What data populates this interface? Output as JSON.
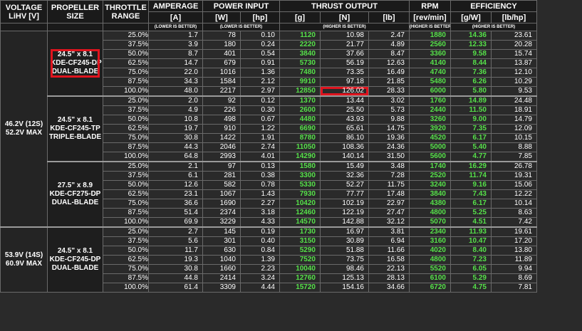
{
  "headers": {
    "voltage": [
      "VOLTAGE",
      "LiHV [V]"
    ],
    "propeller": [
      "PROPELLER",
      "SIZE"
    ],
    "throttle": [
      "THROTTLE",
      "RANGE"
    ],
    "amperage": {
      "title": "AMPERAGE",
      "unit": "[A]",
      "note": "(LOWER IS BETTER)"
    },
    "power": {
      "title": "POWER INPUT",
      "unit1": "[W]",
      "unit2": "[hp]",
      "note": "(LOWER IS BETTER)"
    },
    "thrust": {
      "title": "THRUST OUTPUT",
      "unit1": "[g]",
      "unit2": "[N]",
      "unit3": "[lb]",
      "note": "(HIGHER IS BETTER)"
    },
    "rpm": {
      "title": "RPM",
      "unit": "[rev/min]",
      "note": "(HIGHER IS BETTER)"
    },
    "efficiency": {
      "title": "EFFICIENCY",
      "unit1": "[g/W]",
      "unit2": "[lb/hp]",
      "note": "(HIGHER IS BETTER)"
    }
  },
  "voltages": [
    {
      "lines": [
        "46.2V (12S)",
        "52.2V MAX"
      ]
    },
    {
      "lines": [
        "53.9V (14S)",
        "60.9V MAX"
      ]
    }
  ],
  "groups": [
    {
      "prop_lines": [
        "24.5\" x 8.1",
        "KDE-CF245-DP",
        "DUAL-BLADE"
      ],
      "rows": [
        [
          "25.0%",
          "1.7",
          "78",
          "0.10",
          "1120",
          "10.98",
          "2.47",
          "1880",
          "14.36",
          "23.61"
        ],
        [
          "37.5%",
          "3.9",
          "180",
          "0.24",
          "2220",
          "21.77",
          "4.89",
          "2560",
          "12.33",
          "20.28"
        ],
        [
          "50.0%",
          "8.7",
          "401",
          "0.54",
          "3840",
          "37.66",
          "8.47",
          "3360",
          "9.58",
          "15.74"
        ],
        [
          "62.5%",
          "14.7",
          "679",
          "0.91",
          "5730",
          "56.19",
          "12.63",
          "4140",
          "8.44",
          "13.87"
        ],
        [
          "75.0%",
          "22.0",
          "1016",
          "1.36",
          "7480",
          "73.35",
          "16.49",
          "4740",
          "7.36",
          "12.10"
        ],
        [
          "87.5%",
          "34.3",
          "1584",
          "2.12",
          "9910",
          "97.18",
          "21.85",
          "5480",
          "6.26",
          "10.29"
        ],
        [
          "100.0%",
          "48.0",
          "2217",
          "2.97",
          "12850",
          "126.02",
          "28.33",
          "6000",
          "5.80",
          "9.53"
        ]
      ]
    },
    {
      "prop_lines": [
        "24.5\" x 8.1",
        "KDE-CF245-TP",
        "TRIPLE-BLADE"
      ],
      "rows": [
        [
          "25.0%",
          "2.0",
          "92",
          "0.12",
          "1370",
          "13.44",
          "3.02",
          "1760",
          "14.89",
          "24.48"
        ],
        [
          "37.5%",
          "4.9",
          "226",
          "0.30",
          "2600",
          "25.50",
          "5.73",
          "2440",
          "11.50",
          "18.91"
        ],
        [
          "50.0%",
          "10.8",
          "498",
          "0.67",
          "4480",
          "43.93",
          "9.88",
          "3260",
          "9.00",
          "14.79"
        ],
        [
          "62.5%",
          "19.7",
          "910",
          "1.22",
          "6690",
          "65.61",
          "14.75",
          "3920",
          "7.35",
          "12.09"
        ],
        [
          "75.0%",
          "30.8",
          "1422",
          "1.91",
          "8780",
          "86.10",
          "19.36",
          "4520",
          "6.17",
          "10.15"
        ],
        [
          "87.5%",
          "44.3",
          "2046",
          "2.74",
          "11050",
          "108.36",
          "24.36",
          "5000",
          "5.40",
          "8.88"
        ],
        [
          "100.0%",
          "64.8",
          "2993",
          "4.01",
          "14290",
          "140.14",
          "31.50",
          "5600",
          "4.77",
          "7.85"
        ]
      ]
    },
    {
      "prop_lines": [
        "27.5\" x 8.9",
        "KDE-CF275-DP",
        "DUAL-BLADE"
      ],
      "rows": [
        [
          "25.0%",
          "2.1",
          "97",
          "0.13",
          "1580",
          "15.49",
          "3.48",
          "1740",
          "16.29",
          "26.78"
        ],
        [
          "37.5%",
          "6.1",
          "281",
          "0.38",
          "3300",
          "32.36",
          "7.28",
          "2520",
          "11.74",
          "19.31"
        ],
        [
          "50.0%",
          "12.6",
          "582",
          "0.78",
          "5330",
          "52.27",
          "11.75",
          "3240",
          "9.16",
          "15.06"
        ],
        [
          "62.5%",
          "23.1",
          "1067",
          "1.43",
          "7930",
          "77.77",
          "17.48",
          "3840",
          "7.43",
          "12.22"
        ],
        [
          "75.0%",
          "36.6",
          "1690",
          "2.27",
          "10420",
          "102.19",
          "22.97",
          "4380",
          "6.17",
          "10.14"
        ],
        [
          "87.5%",
          "51.4",
          "2374",
          "3.18",
          "12460",
          "122.19",
          "27.47",
          "4800",
          "5.25",
          "8.63"
        ],
        [
          "100.0%",
          "69.9",
          "3229",
          "4.33",
          "14570",
          "142.88",
          "32.12",
          "5070",
          "4.51",
          "7.42"
        ]
      ]
    },
    {
      "prop_lines": [
        "24.5\" x 8.1",
        "KDE-CF245-DP",
        "DUAL-BLADE"
      ],
      "rows": [
        [
          "25.0%",
          "2.7",
          "145",
          "0.19",
          "1730",
          "16.97",
          "3.81",
          "2340",
          "11.93",
          "19.61"
        ],
        [
          "37.5%",
          "5.6",
          "301",
          "0.40",
          "3150",
          "30.89",
          "6.94",
          "3160",
          "10.47",
          "17.20"
        ],
        [
          "50.0%",
          "11.7",
          "630",
          "0.84",
          "5290",
          "51.88",
          "11.66",
          "4020",
          "8.40",
          "13.80"
        ],
        [
          "62.5%",
          "19.3",
          "1040",
          "1.39",
          "7520",
          "73.75",
          "16.58",
          "4800",
          "7.23",
          "11.89"
        ],
        [
          "75.0%",
          "30.8",
          "1660",
          "2.23",
          "10040",
          "98.46",
          "22.13",
          "5520",
          "6.05",
          "9.94"
        ],
        [
          "87.5%",
          "44.8",
          "2414",
          "3.24",
          "12760",
          "125.13",
          "28.13",
          "6100",
          "5.29",
          "8.69"
        ],
        [
          "100.0%",
          "61.4",
          "3309",
          "4.44",
          "15720",
          "154.16",
          "34.66",
          "6720",
          "4.75",
          "7.81"
        ]
      ]
    }
  ],
  "accent_colors": {
    "good_value": "#56e04a",
    "highlight_box": "#e0141e",
    "background": "#2a2a2a"
  }
}
